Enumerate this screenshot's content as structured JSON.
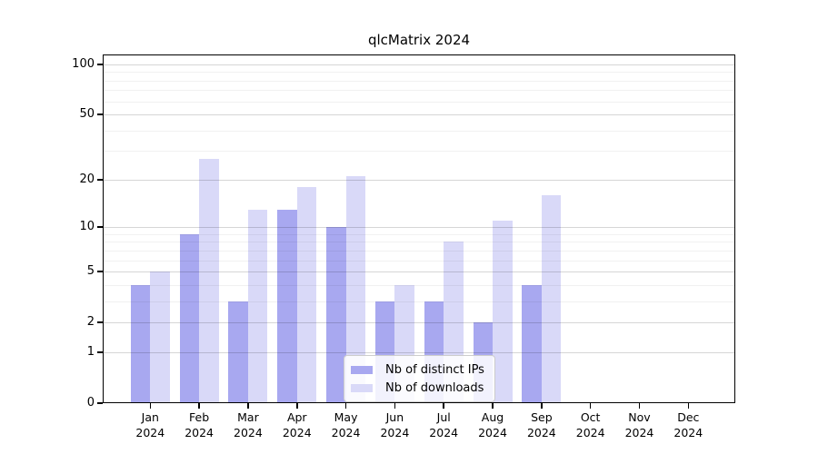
{
  "chart_data": {
    "type": "bar",
    "title": "qlcMatrix 2024",
    "categories": [
      "Jan",
      "Feb",
      "Mar",
      "Apr",
      "May",
      "Jun",
      "Jul",
      "Aug",
      "Sep",
      "Oct",
      "Nov",
      "Dec"
    ],
    "year_label": "2024",
    "series": [
      {
        "name": "Nb of distinct IPs",
        "color": "#a8a8f0",
        "values": [
          4,
          9,
          3,
          13,
          10,
          3,
          3,
          2,
          4,
          0,
          0,
          0
        ]
      },
      {
        "name": "Nb of downloads",
        "color": "#d9d9f8",
        "values": [
          5,
          27,
          13,
          18,
          21,
          4,
          8,
          11,
          16,
          0,
          0,
          0
        ]
      }
    ],
    "y_axis": {
      "scale": "log1p",
      "ticks": [
        0,
        1,
        2,
        5,
        10,
        20,
        50,
        100
      ],
      "minor_ticks": [
        3,
        4,
        6,
        7,
        8,
        9,
        30,
        40,
        60,
        70,
        80,
        90
      ],
      "ylim": [
        0,
        115
      ]
    },
    "grid": "horizontal",
    "legend": {
      "position": "lower center"
    }
  }
}
